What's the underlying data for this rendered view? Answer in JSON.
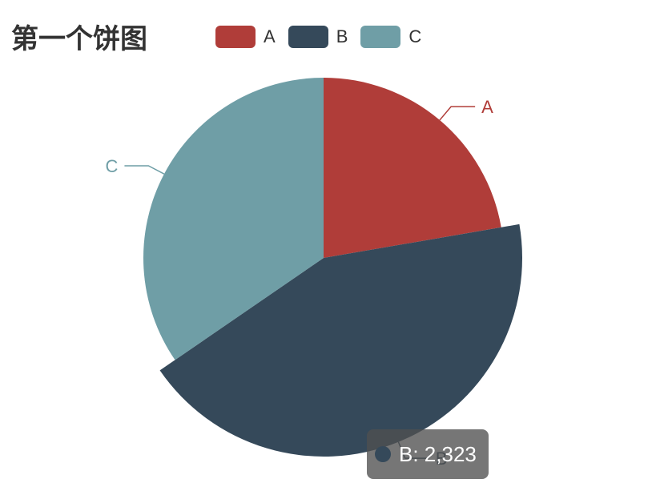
{
  "chart_data": {
    "type": "pie",
    "title": "第一个饼图",
    "categories": [
      "A",
      "B",
      "C"
    ],
    "values": [
      1200,
      2323,
      1862
    ],
    "colors": [
      "#b03d39",
      "#35495a",
      "#6f9ea6"
    ],
    "legend": {
      "placement": "top",
      "entries": [
        "A",
        "B",
        "C"
      ]
    },
    "emphasized_slice": "B",
    "tooltip": {
      "name": "B",
      "value": "2,323"
    }
  }
}
